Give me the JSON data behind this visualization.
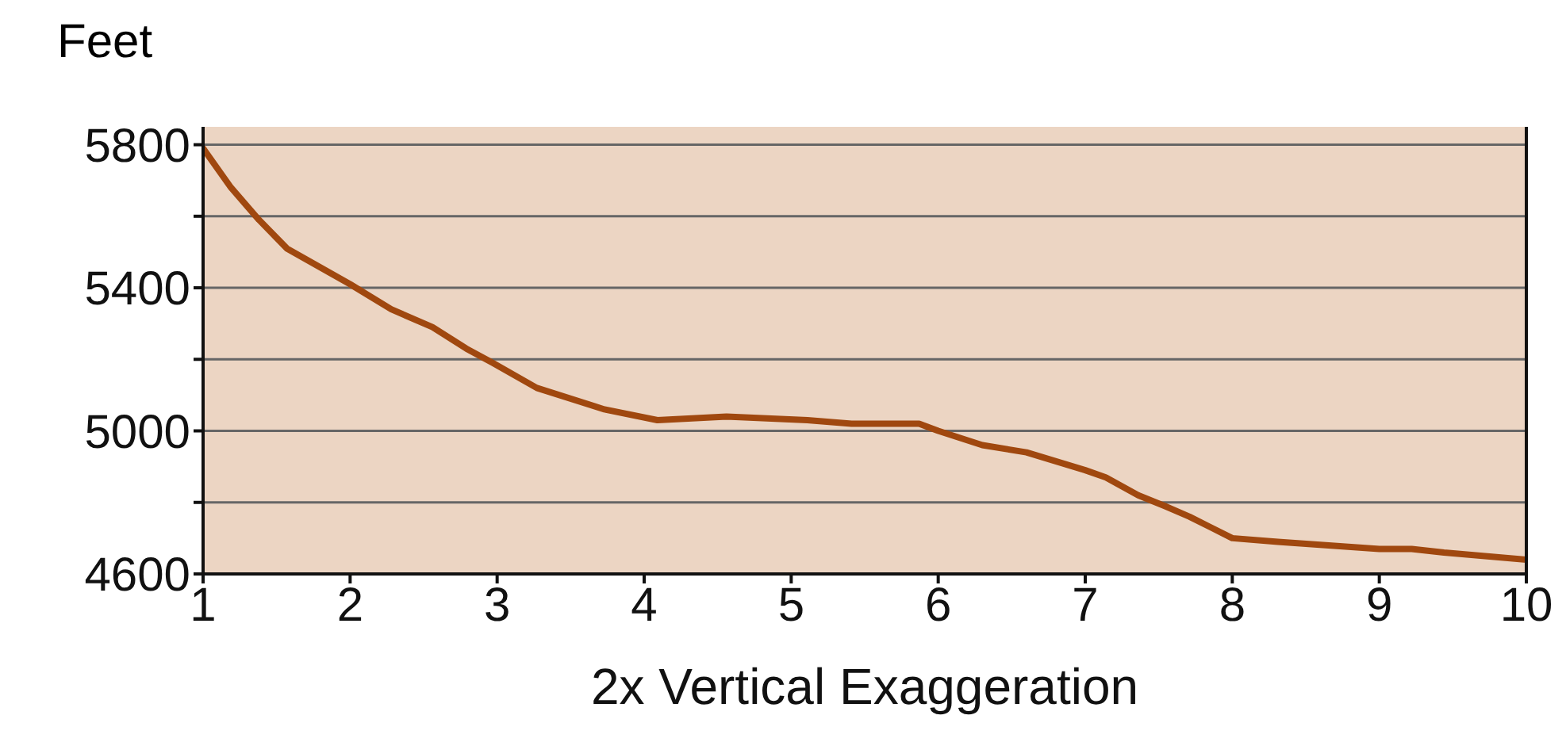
{
  "chart_data": {
    "type": "line",
    "ylabel": "Feet",
    "xlabel": "2x Vertical Exaggeration",
    "x": [
      1,
      1.19,
      1.38,
      1.57,
      2,
      2.28,
      2.56,
      2.79,
      2.97,
      3.27,
      3.73,
      4.09,
      4.56,
      5.11,
      5.41,
      5.63,
      5.87,
      6,
      6.3,
      6.6,
      7,
      7.14,
      7.36,
      7.54,
      7.71,
      8,
      8.31,
      9,
      9.22,
      9.44,
      10
    ],
    "series": [
      {
        "color": "#a0480f",
        "values": [
          5790,
          5680,
          5590,
          5510,
          5410,
          5340,
          5290,
          5230,
          5190,
          5120,
          5060,
          5030,
          5040,
          5030,
          5020,
          5020,
          5020,
          5000,
          4960,
          4940,
          4890,
          4870,
          4820,
          4790,
          4760,
          4700,
          4690,
          4670,
          4670,
          4660,
          4640
        ]
      }
    ],
    "xlim": [
      1,
      10
    ],
    "xticks": [
      1,
      2,
      3,
      4,
      5,
      6,
      7,
      8,
      9,
      10
    ],
    "ylim": [
      4600,
      5850
    ],
    "yticks": [
      4600,
      {
        "value": 4800,
        "label": null
      },
      5000,
      {
        "value": 5200,
        "label": null
      },
      5400,
      {
        "value": 5600,
        "label": null
      },
      5800
    ],
    "grid": "y",
    "legend": false,
    "marker": "none",
    "line_style": "solid"
  }
}
